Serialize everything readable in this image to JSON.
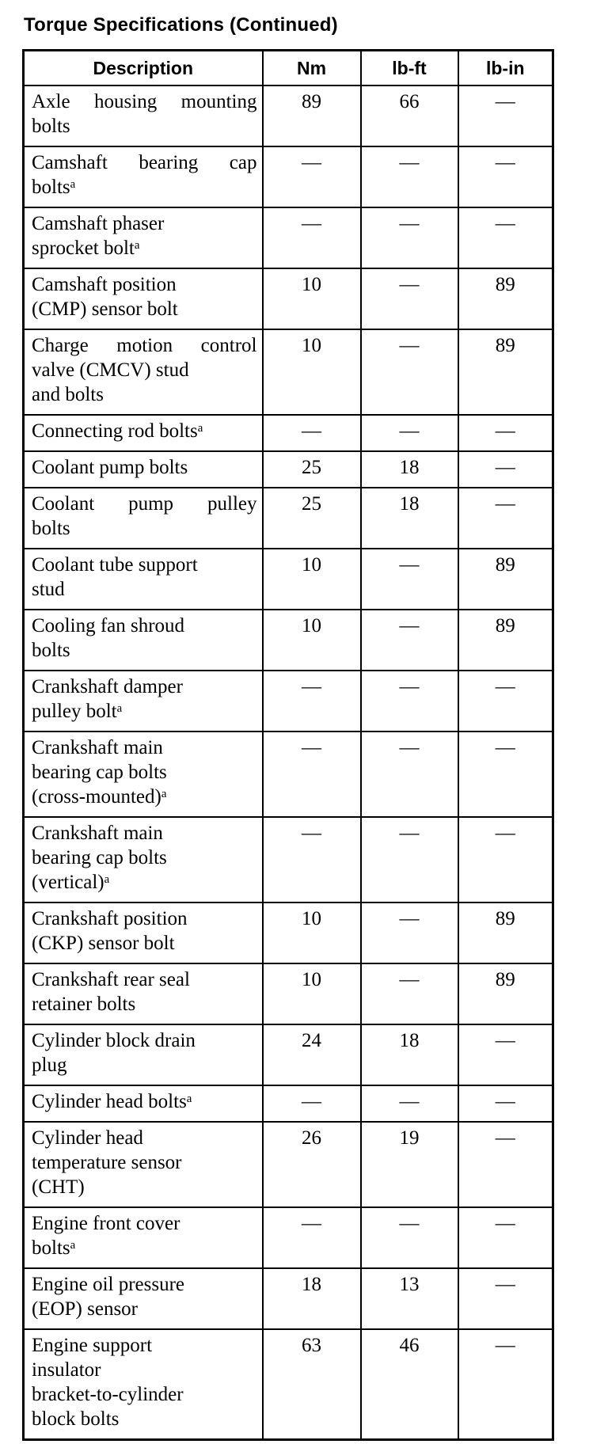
{
  "page": {
    "title": "Torque Specifications (Continued)"
  },
  "table": {
    "columns": [
      "Description",
      "Nm",
      "lb-ft",
      "lb-in"
    ],
    "empty_value": "—",
    "rows": [
      {
        "description": [
          "Axle housing mounting",
          "bolts"
        ],
        "nm": "89",
        "lb_ft": "66",
        "lb_in": "—"
      },
      {
        "description": [
          "Camshaft bearing cap",
          "boltsᵃ"
        ],
        "nm": "—",
        "lb_ft": "—",
        "lb_in": "—"
      },
      {
        "description": [
          "Camshaft phaser",
          "sprocket boltᵃ"
        ],
        "nm": "—",
        "lb_ft": "—",
        "lb_in": "—"
      },
      {
        "description": [
          "Camshaft position",
          "(CMP) sensor bolt"
        ],
        "nm": "10",
        "lb_ft": "—",
        "lb_in": "89"
      },
      {
        "description": [
          "Charge motion control",
          "valve (CMCV) stud",
          "and bolts"
        ],
        "nm": "10",
        "lb_ft": "—",
        "lb_in": "89"
      },
      {
        "description": [
          "Connecting rod boltsᵃ"
        ],
        "nm": "—",
        "lb_ft": "—",
        "lb_in": "—"
      },
      {
        "description": [
          "Coolant pump bolts"
        ],
        "nm": "25",
        "lb_ft": "18",
        "lb_in": "—"
      },
      {
        "description": [
          "Coolant pump pulley",
          "bolts"
        ],
        "nm": "25",
        "lb_ft": "18",
        "lb_in": "—"
      },
      {
        "description": [
          "Coolant tube support",
          "stud"
        ],
        "nm": "10",
        "lb_ft": "—",
        "lb_in": "89"
      },
      {
        "description": [
          "Cooling fan shroud",
          "bolts"
        ],
        "nm": "10",
        "lb_ft": "—",
        "lb_in": "89"
      },
      {
        "description": [
          "Crankshaft damper",
          "pulley boltᵃ"
        ],
        "nm": "—",
        "lb_ft": "—",
        "lb_in": "—"
      },
      {
        "description": [
          "Crankshaft main",
          "bearing cap bolts",
          "(cross-mounted)ᵃ"
        ],
        "nm": "—",
        "lb_ft": "—",
        "lb_in": "—"
      },
      {
        "description": [
          "Crankshaft main",
          "bearing cap bolts",
          "(vertical)ᵃ"
        ],
        "nm": "—",
        "lb_ft": "—",
        "lb_in": "—"
      },
      {
        "description": [
          "Crankshaft position",
          "(CKP) sensor bolt"
        ],
        "nm": "10",
        "lb_ft": "—",
        "lb_in": "89"
      },
      {
        "description": [
          "Crankshaft rear seal",
          "retainer bolts"
        ],
        "nm": "10",
        "lb_ft": "—",
        "lb_in": "89"
      },
      {
        "description": [
          "Cylinder block drain",
          "plug"
        ],
        "nm": "24",
        "lb_ft": "18",
        "lb_in": "—"
      },
      {
        "description": [
          "Cylinder head boltsᵃ"
        ],
        "nm": "—",
        "lb_ft": "—",
        "lb_in": "—"
      },
      {
        "description": [
          "Cylinder head",
          "temperature sensor",
          "(CHT)"
        ],
        "nm": "26",
        "lb_ft": "19",
        "lb_in": "—"
      },
      {
        "description": [
          "Engine front cover",
          "boltsᵃ"
        ],
        "nm": "—",
        "lb_ft": "—",
        "lb_in": "—"
      },
      {
        "description": [
          "Engine oil pressure",
          "(EOP) sensor"
        ],
        "nm": "18",
        "lb_ft": "13",
        "lb_in": "—"
      },
      {
        "description": [
          "Engine support",
          "insulator",
          "bracket-to-cylinder",
          "block bolts"
        ],
        "nm": "63",
        "lb_ft": "46",
        "lb_in": "—"
      }
    ]
  }
}
